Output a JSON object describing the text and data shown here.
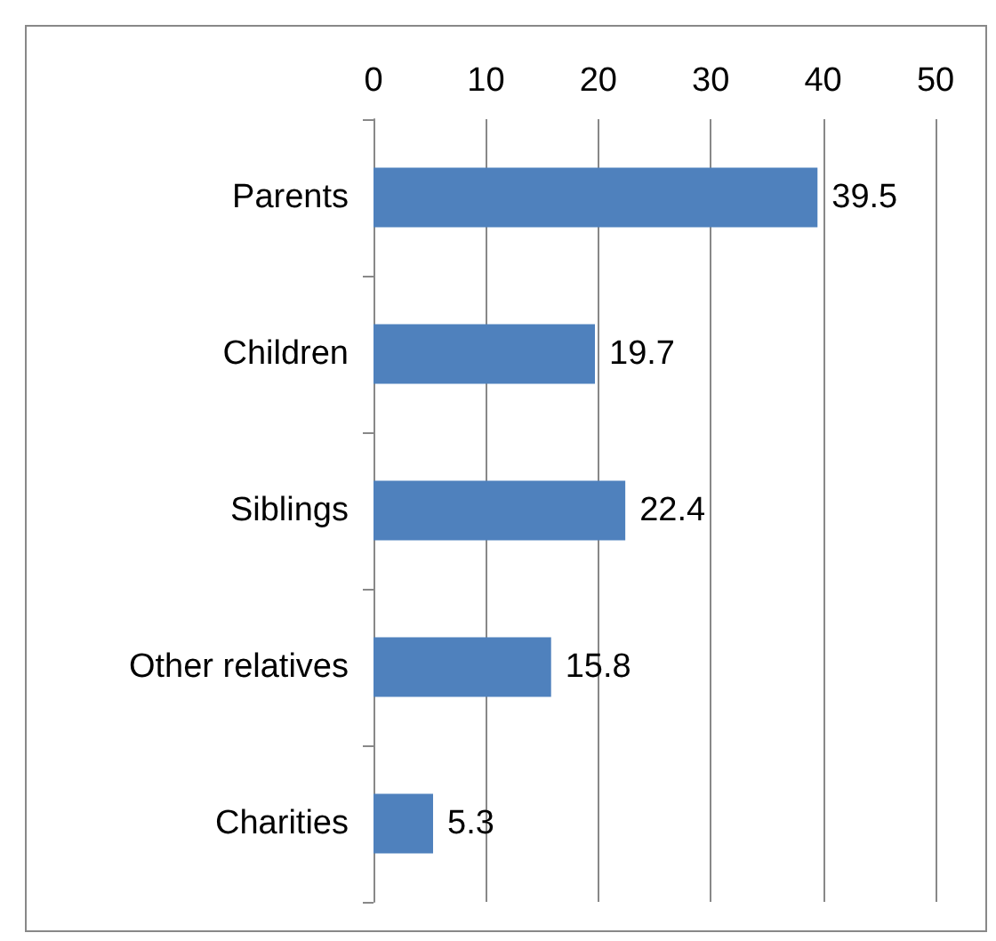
{
  "chart_data": {
    "type": "bar",
    "orientation": "horizontal",
    "categories": [
      "Parents",
      "Children",
      "Siblings",
      "Other relatives",
      "Charities"
    ],
    "values": [
      39.5,
      19.7,
      22.4,
      15.8,
      5.3
    ],
    "color": "#4f81bd",
    "xlim": [
      0,
      50
    ],
    "xticks": [
      0,
      10,
      20,
      30,
      40,
      50
    ],
    "grid": "x",
    "data_labels": true
  }
}
